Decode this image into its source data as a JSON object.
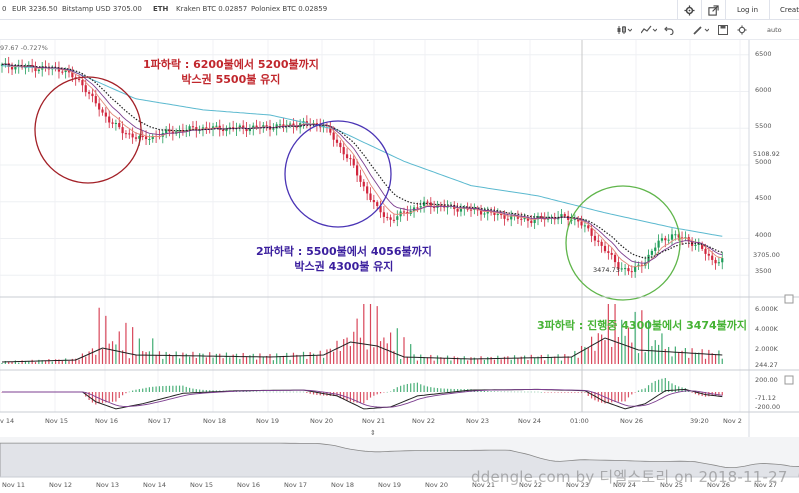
{
  "topbar": {
    "tickers": [
      {
        "label": "0",
        "bold": false
      },
      {
        "label": "EUR 3236.50",
        "bold": false
      },
      {
        "label": "Bitstamp USD 3705.00",
        "bold": false
      },
      {
        "label": "ETH",
        "bold": true
      },
      {
        "label": "Kraken BTC 0.02857",
        "bold": false
      },
      {
        "label": "Poloniex BTC 0.02859",
        "bold": false
      }
    ],
    "login": "Log in",
    "create": "Creat"
  },
  "toolbar": {
    "last_change": "97.67 -0.727%",
    "auto": "auto"
  },
  "colors": {
    "up": "#1f9c59",
    "down": "#d1263d",
    "sma_long": "#5bb9cf",
    "ema_short": "#e38a7a",
    "ema_mid": "#7d3f90",
    "dotted": "#222222",
    "circle1": "#a32027",
    "circle2": "#4a34b5",
    "circle3": "#5fb54a"
  },
  "annotations": {
    "wave1_line1": "1파하락 : 6200불에서 5200불까지",
    "wave1_line2": "박스권 5500불 유지",
    "wave2_line1": "2파하락 : 5500불에서 4056불까지",
    "wave2_line2": "박스권 4300불 유지",
    "wave3_line1": "3파하락 : 진행중 4300불에서 3474불까지"
  },
  "price_axis": {
    "ticks": [
      "6500",
      "6000",
      "5500",
      "5000",
      "4500",
      "4000",
      "3500"
    ],
    "last_price_label": "5108.92",
    "current_price_label": "3705.00",
    "low_marker": "3474.73"
  },
  "volume_axis": {
    "ticks": [
      "6.000K",
      "4.000K",
      "2.000K"
    ],
    "current_label": "244.27"
  },
  "macd_axis": {
    "ticks": [
      "200.00",
      "-200.00"
    ],
    "current_label": "-71.12"
  },
  "time_axis": {
    "labels": [
      "v 14",
      "Nov 15",
      "Nov 16",
      "Nov 17",
      "Nov 18",
      "Nov 19",
      "Nov 20",
      "Nov 21",
      "Nov 22",
      "Nov 23",
      "Nov 24",
      "01:00",
      "Nov 26",
      "39:20",
      "Nov 2"
    ],
    "nav_labels": [
      "Nov 11",
      "Nov 12",
      "Nov 13",
      "Nov 14",
      "Nov 15",
      "Nov 16",
      "Nov 17",
      "Nov 18",
      "Nov 19",
      "Nov 20",
      "Nov 21",
      "Nov 22",
      "Nov 23",
      "Nov 24",
      "Nov 25",
      "Nov 26",
      "Nov 27"
    ]
  },
  "chart_data": {
    "type": "candlestick",
    "symbol": "BTC/USD",
    "ylim": [
      3300,
      6700
    ],
    "price_path": [
      [
        0,
        6350
      ],
      [
        10,
        6320
      ],
      [
        18,
        6300
      ],
      [
        24,
        6100
      ],
      [
        30,
        5700
      ],
      [
        36,
        5450
      ],
      [
        42,
        5350
      ],
      [
        50,
        5450
      ],
      [
        58,
        5500
      ],
      [
        70,
        5500
      ],
      [
        80,
        5520
      ],
      [
        90,
        5560
      ],
      [
        96,
        5550
      ],
      [
        100,
        5300
      ],
      [
        104,
        5050
      ],
      [
        108,
        4700
      ],
      [
        112,
        4400
      ],
      [
        116,
        4250
      ],
      [
        120,
        4350
      ],
      [
        126,
        4470
      ],
      [
        134,
        4420
      ],
      [
        142,
        4380
      ],
      [
        150,
        4300
      ],
      [
        158,
        4250
      ],
      [
        166,
        4300
      ],
      [
        172,
        4250
      ],
      [
        176,
        4050
      ],
      [
        180,
        3850
      ],
      [
        184,
        3620
      ],
      [
        188,
        3550
      ],
      [
        192,
        3700
      ],
      [
        196,
        3950
      ],
      [
        200,
        4050
      ],
      [
        204,
        3990
      ],
      [
        208,
        3900
      ],
      [
        212,
        3700
      ],
      [
        215,
        3705
      ]
    ],
    "sma_path": [
      [
        0,
        6350
      ],
      [
        20,
        6300
      ],
      [
        40,
        5900
      ],
      [
        60,
        5750
      ],
      [
        80,
        5680
      ],
      [
        100,
        5480
      ],
      [
        120,
        5050
      ],
      [
        140,
        4720
      ],
      [
        160,
        4580
      ],
      [
        180,
        4350
      ],
      [
        200,
        4150
      ],
      [
        215,
        4030
      ]
    ],
    "volume_path": [
      [
        0,
        200
      ],
      [
        22,
        400
      ],
      [
        30,
        1600
      ],
      [
        40,
        900
      ],
      [
        60,
        800
      ],
      [
        80,
        700
      ],
      [
        96,
        900
      ],
      [
        104,
        2200
      ],
      [
        112,
        1800
      ],
      [
        120,
        700
      ],
      [
        140,
        500
      ],
      [
        170,
        700
      ],
      [
        180,
        2600
      ],
      [
        190,
        1400
      ],
      [
        200,
        1200
      ],
      [
        215,
        900
      ]
    ],
    "macd_path": [
      [
        0,
        0
      ],
      [
        24,
        0
      ],
      [
        28,
        -150
      ],
      [
        34,
        -260
      ],
      [
        42,
        -180
      ],
      [
        54,
        -20
      ],
      [
        70,
        20
      ],
      [
        90,
        30
      ],
      [
        100,
        -60
      ],
      [
        108,
        -260
      ],
      [
        116,
        -230
      ],
      [
        124,
        -60
      ],
      [
        140,
        30
      ],
      [
        160,
        40
      ],
      [
        174,
        20
      ],
      [
        180,
        -150
      ],
      [
        186,
        -260
      ],
      [
        192,
        -180
      ],
      [
        198,
        20
      ],
      [
        204,
        40
      ],
      [
        210,
        -40
      ],
      [
        215,
        -71
      ]
    ]
  }
}
